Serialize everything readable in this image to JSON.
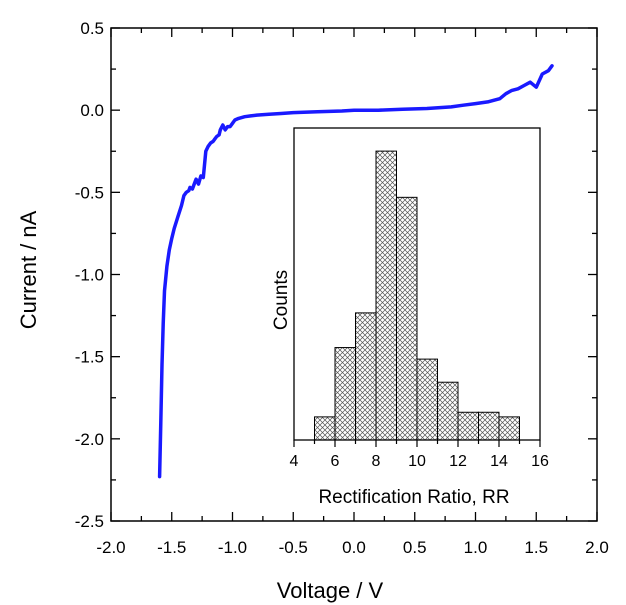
{
  "chart_data": [
    {
      "type": "line",
      "xlabel": "Voltage / V",
      "ylabel": "Current / nA",
      "xlim": [
        -2.0,
        2.0
      ],
      "ylim": [
        -2.5,
        0.5
      ],
      "xticks": [
        "-2.0",
        "-1.5",
        "-1.0",
        "-0.5",
        "0.0",
        "0.5",
        "1.0",
        "1.5",
        "2.0"
      ],
      "yticks": [
        "0.5",
        "0.0",
        "-0.5",
        "-1.0",
        "-1.5",
        "-2.0",
        "-2.5"
      ],
      "grid": false,
      "line_color": "#1a1aff",
      "series": [
        {
          "x": [
            -1.6,
            -1.59,
            -1.58,
            -1.57,
            -1.56,
            -1.54,
            -1.52,
            -1.5,
            -1.48,
            -1.45,
            -1.42,
            -1.4,
            -1.38,
            -1.36,
            -1.35,
            -1.33,
            -1.31,
            -1.3,
            -1.28,
            -1.26,
            -1.24,
            -1.22,
            -1.2,
            -1.18,
            -1.16,
            -1.15,
            -1.13,
            -1.11,
            -1.1,
            -1.08,
            -1.06,
            -1.04,
            -1.02,
            -1.0,
            -0.98,
            -0.95,
            -0.9,
            -0.85,
            -0.8,
            -0.7,
            -0.6,
            -0.5,
            -0.3,
            -0.1,
            0.0,
            0.2,
            0.4,
            0.6,
            0.8,
            0.9,
            1.0,
            1.1,
            1.15,
            1.2,
            1.25,
            1.3,
            1.35,
            1.4,
            1.45,
            1.5,
            1.55,
            1.6,
            1.63
          ],
          "y": [
            -2.23,
            -1.9,
            -1.55,
            -1.3,
            -1.1,
            -0.95,
            -0.85,
            -0.78,
            -0.72,
            -0.65,
            -0.58,
            -0.52,
            -0.5,
            -0.49,
            -0.47,
            -0.48,
            -0.44,
            -0.42,
            -0.45,
            -0.4,
            -0.41,
            -0.25,
            -0.22,
            -0.2,
            -0.19,
            -0.18,
            -0.16,
            -0.15,
            -0.12,
            -0.09,
            -0.12,
            -0.1,
            -0.1,
            -0.08,
            -0.06,
            -0.05,
            -0.04,
            -0.035,
            -0.03,
            -0.025,
            -0.02,
            -0.015,
            -0.01,
            -0.005,
            0.0,
            0.0,
            0.005,
            0.01,
            0.02,
            0.03,
            0.04,
            0.05,
            0.06,
            0.07,
            0.1,
            0.12,
            0.13,
            0.15,
            0.17,
            0.14,
            0.22,
            0.24,
            0.27
          ]
        }
      ]
    },
    {
      "type": "bar",
      "xlabel": "Rectification Ratio, RR",
      "ylabel": "Counts",
      "xlim": [
        4,
        16
      ],
      "xticks": [
        "4",
        "6",
        "8",
        "10",
        "12",
        "14",
        "16"
      ],
      "bin_edges": [
        5,
        6,
        7,
        8,
        9,
        10,
        11,
        12,
        13,
        14,
        15
      ],
      "counts": [
        1,
        4,
        5.5,
        12.5,
        10.5,
        3.5,
        2.5,
        1.2,
        1.2,
        1
      ],
      "fill": "crosshatch"
    }
  ]
}
